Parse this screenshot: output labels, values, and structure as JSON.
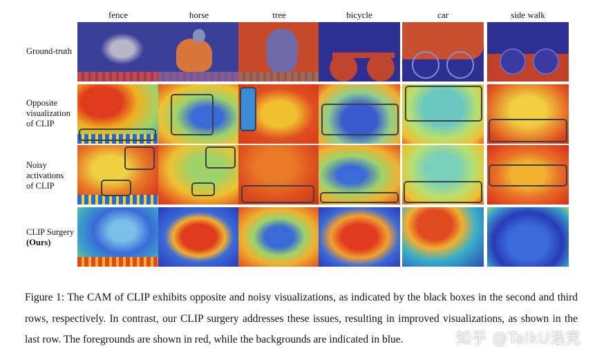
{
  "columns": [
    "fence",
    "horse",
    "tree",
    "bicycle",
    "car",
    "side walk"
  ],
  "rows": [
    {
      "label_lines": [
        "Ground-truth"
      ]
    },
    {
      "label_lines": [
        "Opposite",
        "visualization",
        "of CLIP"
      ]
    },
    {
      "label_lines": [
        "Noisy",
        "activations",
        "of CLIP"
      ]
    },
    {
      "label_lines": [
        "CLIP Surgery"
      ],
      "label_bold": "(Ours)"
    }
  ],
  "caption": "Figure 1: The CAM of CLIP exhibits opposite and noisy visualizations, as indicated by the black boxes in the second and third rows, respectively. In contrast, our CLIP surgery addresses these issues, resulting in improved visualizations, as shown in the last row. The foregrounds are shown in red, while the backgrounds are indicated in blue.",
  "watermark": "知乎 @TalkU浩克",
  "colors": {
    "foreground": "#d8321e",
    "background": "#2a2fb0",
    "box": "#3a4046"
  }
}
